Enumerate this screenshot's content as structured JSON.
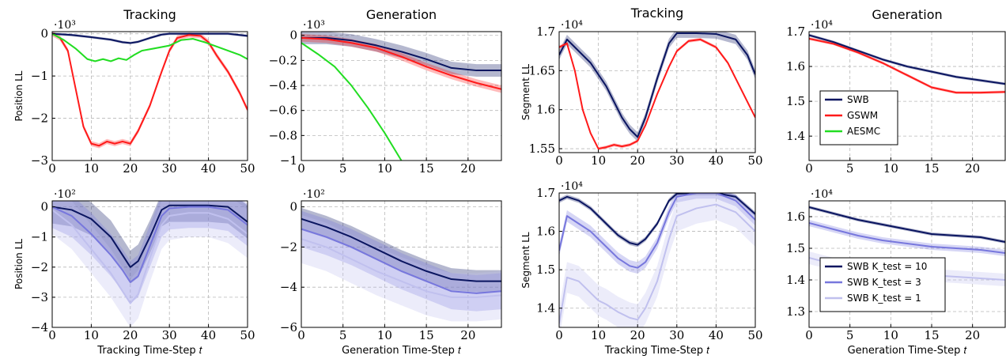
{
  "colors": {
    "SWB": "#0a1560",
    "GSWM": "#ff1a1a",
    "AESMC": "#22dd22",
    "K10": "#0a1560",
    "K3": "#7777dd",
    "K1": "#c0c0ee"
  },
  "chart_data": [
    {
      "type": "line",
      "title": "Tracking",
      "ylabel": "Position LL",
      "xlabel": "",
      "exponent": "·10³",
      "xlim": [
        0,
        50
      ],
      "ylim": [
        -3,
        0.05
      ],
      "xticks": [
        0,
        10,
        20,
        30,
        40,
        50
      ],
      "yticks": [
        -3,
        -2,
        -1,
        0
      ],
      "ytick_labels": [
        "−3",
        "−2",
        "−1",
        "0"
      ],
      "series": [
        {
          "name": "SWB",
          "color_key": "SWB",
          "band": 0.03,
          "x": [
            0,
            5,
            10,
            15,
            18,
            20,
            22,
            25,
            28,
            30,
            35,
            40,
            45,
            50
          ],
          "y": [
            0,
            -0.03,
            -0.08,
            -0.14,
            -0.2,
            -0.22,
            -0.19,
            -0.1,
            -0.02,
            0,
            0,
            0,
            0,
            -0.05
          ]
        },
        {
          "name": "GSWM",
          "color_key": "GSWM",
          "band": 0.06,
          "x": [
            0,
            2,
            4,
            6,
            8,
            10,
            12,
            14,
            16,
            18,
            20,
            22,
            25,
            28,
            30,
            32,
            35,
            38,
            40,
            42,
            45,
            48,
            50
          ],
          "y": [
            0,
            -0.1,
            -0.4,
            -1.3,
            -2.2,
            -2.6,
            -2.65,
            -2.55,
            -2.6,
            -2.55,
            -2.6,
            -2.3,
            -1.7,
            -0.9,
            -0.4,
            -0.1,
            -0.03,
            -0.05,
            -0.2,
            -0.5,
            -0.9,
            -1.4,
            -1.8
          ]
        },
        {
          "name": "AESMC",
          "color_key": "AESMC",
          "band": 0.02,
          "x": [
            0,
            3,
            6,
            9,
            11,
            13,
            15,
            17,
            19,
            21,
            23,
            26,
            30,
            33,
            36,
            39,
            42,
            45,
            48,
            50
          ],
          "y": [
            0,
            -0.15,
            -0.35,
            -0.6,
            -0.65,
            -0.6,
            -0.65,
            -0.58,
            -0.62,
            -0.5,
            -0.4,
            -0.35,
            -0.28,
            -0.15,
            -0.12,
            -0.2,
            -0.3,
            -0.4,
            -0.5,
            -0.6
          ]
        }
      ]
    },
    {
      "type": "line",
      "title": "Generation",
      "ylabel": "",
      "xlabel": "",
      "exponent": "·10³",
      "xlim": [
        0,
        24
      ],
      "ylim": [
        -1,
        0.03
      ],
      "xticks": [
        0,
        5,
        10,
        15,
        20
      ],
      "yticks": [
        -1,
        -0.8,
        -0.6,
        -0.4,
        -0.2,
        0
      ],
      "ytick_labels": [
        "−1",
        "−0.8",
        "−0.6",
        "−0.4",
        "−0.2",
        "0"
      ],
      "series": [
        {
          "name": "SWB",
          "color_key": "SWB",
          "band": 0.05,
          "x": [
            0,
            3,
            6,
            9,
            12,
            15,
            18,
            21,
            24
          ],
          "y": [
            -0.02,
            -0.02,
            -0.04,
            -0.08,
            -0.13,
            -0.19,
            -0.26,
            -0.28,
            -0.28
          ]
        },
        {
          "name": "GSWM",
          "color_key": "GSWM",
          "band": 0.03,
          "x": [
            0,
            3,
            6,
            9,
            12,
            15,
            18,
            21,
            24
          ],
          "y": [
            -0.02,
            -0.03,
            -0.06,
            -0.1,
            -0.17,
            -0.25,
            -0.32,
            -0.38,
            -0.43
          ]
        },
        {
          "name": "AESMC",
          "color_key": "AESMC",
          "band": 0.0,
          "x": [
            0,
            2,
            4,
            6,
            8,
            10,
            12
          ],
          "y": [
            -0.06,
            -0.15,
            -0.25,
            -0.4,
            -0.58,
            -0.78,
            -1.0
          ]
        }
      ]
    },
    {
      "type": "line",
      "title": "Tracking",
      "ylabel": "Segment LL",
      "xlabel": "",
      "exponent": "·10⁴",
      "xlim": [
        0,
        50
      ],
      "ylim": [
        1.545,
        1.7
      ],
      "xticks": [
        0,
        10,
        20,
        30,
        40,
        50
      ],
      "yticks": [
        1.55,
        1.6,
        1.65,
        1.7
      ],
      "ytick_labels": [
        "1.55",
        "1.6",
        "1.65",
        "1.7"
      ],
      "series": [
        {
          "name": "SWB",
          "color_key": "SWB",
          "band": 0.006,
          "x": [
            0,
            2,
            4,
            6,
            8,
            10,
            12,
            14,
            16,
            18,
            20,
            22,
            25,
            28,
            30,
            35,
            40,
            45,
            48,
            50
          ],
          "y": [
            1.67,
            1.69,
            1.68,
            1.67,
            1.66,
            1.645,
            1.63,
            1.61,
            1.59,
            1.575,
            1.565,
            1.59,
            1.64,
            1.685,
            1.698,
            1.698,
            1.697,
            1.69,
            1.67,
            1.645
          ]
        },
        {
          "name": "GSWM",
          "color_key": "GSWM",
          "band": 0.002,
          "x": [
            0,
            2,
            4,
            6,
            8,
            10,
            12,
            14,
            16,
            18,
            20,
            22,
            25,
            28,
            30,
            33,
            36,
            40,
            43,
            46,
            50
          ],
          "y": [
            1.68,
            1.685,
            1.65,
            1.6,
            1.57,
            1.55,
            1.552,
            1.555,
            1.553,
            1.555,
            1.56,
            1.58,
            1.62,
            1.655,
            1.675,
            1.688,
            1.69,
            1.68,
            1.66,
            1.63,
            1.59
          ]
        }
      ]
    },
    {
      "type": "line",
      "title": "Generation",
      "ylabel": "",
      "xlabel": "",
      "exponent": "·10⁴",
      "xlim": [
        0,
        24
      ],
      "ylim": [
        1.33,
        1.7
      ],
      "xticks": [
        0,
        5,
        10,
        15,
        20
      ],
      "yticks": [
        1.4,
        1.5,
        1.6,
        1.7
      ],
      "ytick_labels": [
        "1.4",
        "1.5",
        "1.6",
        "1.7"
      ],
      "legend": {
        "position": "lower-left",
        "entries": [
          {
            "label": "SWB",
            "color_key": "SWB"
          },
          {
            "label": "GSWM",
            "color_key": "GSWM"
          },
          {
            "label": "AESMC",
            "color_key": "AESMC"
          }
        ]
      },
      "series": [
        {
          "name": "SWB",
          "color_key": "SWB",
          "band": 0.004,
          "x": [
            0,
            3,
            6,
            9,
            12,
            15,
            18,
            21,
            24
          ],
          "y": [
            1.69,
            1.67,
            1.645,
            1.62,
            1.6,
            1.585,
            1.57,
            1.56,
            1.55
          ]
        },
        {
          "name": "GSWM",
          "color_key": "GSWM",
          "band": 0.004,
          "x": [
            0,
            3,
            6,
            9,
            12,
            15,
            18,
            21,
            24
          ],
          "y": [
            1.68,
            1.665,
            1.64,
            1.61,
            1.575,
            1.54,
            1.525,
            1.525,
            1.527
          ]
        }
      ]
    },
    {
      "type": "line",
      "title": "",
      "ylabel": "Position LL",
      "xlabel": "Tracking Time-Step 𝑡",
      "exponent": "·10²",
      "xlim": [
        0,
        50
      ],
      "ylim": [
        -4,
        0.2
      ],
      "xticks": [
        0,
        10,
        20,
        30,
        40,
        50
      ],
      "yticks": [
        -4,
        -3,
        -2,
        -1,
        0
      ],
      "ytick_labels": [
        "−4",
        "−3",
        "−2",
        "−1",
        "0"
      ],
      "series": [
        {
          "name": "SWB K_test = 10",
          "color_key": "K10",
          "band": 0.55,
          "x": [
            0,
            5,
            10,
            15,
            18,
            20,
            22,
            25,
            28,
            30,
            35,
            40,
            45,
            50
          ],
          "y": [
            0,
            -0.1,
            -0.4,
            -1.0,
            -1.6,
            -2.0,
            -1.8,
            -1.0,
            -0.1,
            0.05,
            0.05,
            0.05,
            0.0,
            -0.5
          ]
        },
        {
          "name": "SWB K_test = 3",
          "color_key": "K3",
          "band": 0.7,
          "x": [
            0,
            5,
            10,
            15,
            18,
            20,
            22,
            25,
            28,
            30,
            35,
            40,
            45,
            50
          ],
          "y": [
            0,
            -0.3,
            -0.9,
            -1.6,
            -2.1,
            -2.5,
            -2.3,
            -1.3,
            -0.3,
            -0.05,
            0,
            0,
            -0.1,
            -0.6
          ]
        },
        {
          "name": "SWB K_test = 1",
          "color_key": "K1",
          "band": 0.8,
          "x": [
            0,
            5,
            10,
            15,
            18,
            20,
            22,
            25,
            28,
            30,
            35,
            40,
            45,
            50
          ],
          "y": [
            -0.1,
            -0.6,
            -1.4,
            -2.2,
            -2.8,
            -3.2,
            -2.9,
            -1.7,
            -0.6,
            -0.3,
            -0.2,
            -0.2,
            -0.4,
            -0.9
          ]
        }
      ]
    },
    {
      "type": "line",
      "title": "",
      "ylabel": "",
      "xlabel": "Generation Time-Step 𝑡",
      "exponent": "·10²",
      "xlim": [
        0,
        24
      ],
      "ylim": [
        -6,
        0.3
      ],
      "xticks": [
        0,
        5,
        10,
        15,
        20
      ],
      "yticks": [
        -6,
        -4,
        -2,
        0
      ],
      "ytick_labels": [
        "−6",
        "−4",
        "−2",
        "0"
      ],
      "series": [
        {
          "name": "SWB K_test = 10",
          "color_key": "K10",
          "band": 0.55,
          "x": [
            0,
            3,
            6,
            9,
            12,
            15,
            18,
            21,
            24
          ],
          "y": [
            -0.6,
            -1.0,
            -1.5,
            -2.1,
            -2.7,
            -3.2,
            -3.6,
            -3.7,
            -3.7
          ]
        },
        {
          "name": "SWB K_test = 3",
          "color_key": "K3",
          "band": 0.9,
          "x": [
            0,
            3,
            6,
            9,
            12,
            15,
            18,
            21,
            24
          ],
          "y": [
            -1.1,
            -1.5,
            -2.0,
            -2.6,
            -3.2,
            -3.7,
            -4.2,
            -4.3,
            -4.2
          ]
        },
        {
          "name": "SWB K_test = 1",
          "color_key": "K1",
          "band": 1.2,
          "x": [
            0,
            3,
            6,
            9,
            12,
            15,
            18,
            21,
            24
          ],
          "y": [
            -1.6,
            -2.0,
            -2.6,
            -3.2,
            -3.7,
            -4.2,
            -4.5,
            -4.5,
            -4.4
          ]
        }
      ]
    },
    {
      "type": "line",
      "title": "",
      "ylabel": "Segment LL",
      "xlabel": "Tracking Time-Step 𝑡",
      "exponent": "·10⁴",
      "xlim": [
        0,
        50
      ],
      "ylim": [
        1.35,
        1.7
      ],
      "xticks": [
        0,
        10,
        20,
        30,
        40,
        50
      ],
      "yticks": [
        1.4,
        1.5,
        1.6,
        1.7
      ],
      "ytick_labels": [
        "1.4",
        "1.5",
        "1.6",
        "1.7"
      ],
      "series": [
        {
          "name": "SWB K_test = 10",
          "color_key": "K10",
          "band": 0.006,
          "x": [
            0,
            2,
            5,
            8,
            10,
            12,
            15,
            18,
            20,
            22,
            25,
            28,
            30,
            35,
            40,
            45,
            50
          ],
          "y": [
            1.68,
            1.69,
            1.68,
            1.66,
            1.64,
            1.62,
            1.59,
            1.57,
            1.565,
            1.58,
            1.62,
            1.68,
            1.698,
            1.7,
            1.7,
            1.69,
            1.645
          ]
        },
        {
          "name": "SWB K_test = 3",
          "color_key": "K3",
          "band": 0.015,
          "x": [
            0,
            2,
            5,
            8,
            10,
            12,
            15,
            18,
            20,
            22,
            25,
            28,
            30,
            35,
            40,
            45,
            50
          ],
          "y": [
            1.55,
            1.64,
            1.62,
            1.6,
            1.58,
            1.56,
            1.53,
            1.51,
            1.505,
            1.52,
            1.57,
            1.65,
            1.69,
            1.7,
            1.7,
            1.68,
            1.63
          ]
        },
        {
          "name": "SWB K_test = 1",
          "color_key": "K1",
          "band": 0.04,
          "x": [
            0,
            2,
            5,
            8,
            10,
            12,
            15,
            18,
            20,
            22,
            25,
            28,
            30,
            35,
            40,
            45,
            50
          ],
          "y": [
            1.36,
            1.48,
            1.47,
            1.44,
            1.42,
            1.41,
            1.39,
            1.375,
            1.37,
            1.4,
            1.47,
            1.58,
            1.64,
            1.66,
            1.67,
            1.65,
            1.6
          ]
        }
      ]
    },
    {
      "type": "line",
      "title": "",
      "ylabel": "",
      "xlabel": "Generation Time-Step 𝑡",
      "exponent": "·10⁴",
      "xlim": [
        0,
        24
      ],
      "ylim": [
        1.25,
        1.65
      ],
      "xticks": [
        0,
        5,
        10,
        15,
        20
      ],
      "yticks": [
        1.3,
        1.4,
        1.5,
        1.6
      ],
      "ytick_labels": [
        "1.3",
        "1.4",
        "1.5",
        "1.6"
      ],
      "legend": {
        "position": "lower-left",
        "entries": [
          {
            "label": "SWB K_test = 10",
            "color_key": "K10"
          },
          {
            "label": "SWB K_test = 3",
            "color_key": "K3"
          },
          {
            "label": "SWB K_test = 1",
            "color_key": "K1"
          }
        ]
      },
      "series": [
        {
          "name": "SWB K_test = 10",
          "color_key": "K10",
          "band": 0.005,
          "x": [
            0,
            3,
            6,
            9,
            12,
            15,
            18,
            21,
            24
          ],
          "y": [
            1.63,
            1.61,
            1.59,
            1.575,
            1.56,
            1.545,
            1.54,
            1.535,
            1.52
          ]
        },
        {
          "name": "SWB K_test = 3",
          "color_key": "K3",
          "band": 0.01,
          "x": [
            0,
            3,
            6,
            9,
            12,
            15,
            18,
            21,
            24
          ],
          "y": [
            1.58,
            1.56,
            1.54,
            1.525,
            1.515,
            1.505,
            1.5,
            1.495,
            1.485
          ]
        },
        {
          "name": "SWB K_test = 1",
          "color_key": "K1",
          "band": 0.02,
          "x": [
            0,
            3,
            6,
            9,
            12,
            15,
            18,
            21,
            24
          ],
          "y": [
            1.47,
            1.45,
            1.44,
            1.43,
            1.425,
            1.415,
            1.41,
            1.405,
            1.4
          ]
        }
      ]
    }
  ]
}
